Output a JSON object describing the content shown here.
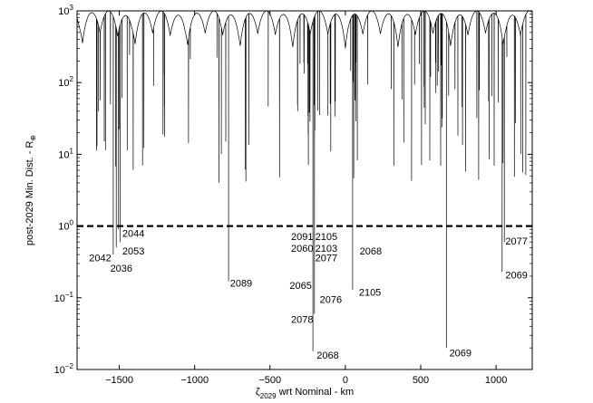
{
  "chart_data": {
    "type": "line",
    "xlabel": {
      "main": "ζ",
      "sub": "2029",
      "rest": " wrt Nominal - km"
    },
    "ylabel": {
      "main": "post-2029 Min. Dist. - R",
      "sub": "⊕"
    },
    "x_scale": "linear",
    "y_scale": "log",
    "xlim": [
      -1780,
      1240
    ],
    "ylim": [
      0.01,
      1000
    ],
    "x_ticks": [
      {
        "value": -1500,
        "label": "−1500"
      },
      {
        "value": -1000,
        "label": "−1000"
      },
      {
        "value": -500,
        "label": "−500"
      },
      {
        "value": 0,
        "label": "0"
      },
      {
        "value": 500,
        "label": "500"
      },
      {
        "value": 1000,
        "label": "1000"
      }
    ],
    "y_ticks": [
      {
        "value": 0.01,
        "base": "10",
        "exp": "−2"
      },
      {
        "value": 0.1,
        "base": "10",
        "exp": "−1"
      },
      {
        "value": 1,
        "base": "10",
        "exp": "0"
      },
      {
        "value": 10,
        "base": "10",
        "exp": "1"
      },
      {
        "value": 100,
        "base": "10",
        "exp": "2"
      },
      {
        "value": 1000,
        "base": "10",
        "exp": "3"
      }
    ],
    "reference_line": {
      "y": 1,
      "style": "dashed"
    },
    "deep_dips": [
      {
        "x": -1540,
        "min": 0.4
      },
      {
        "x": -1520,
        "min": 0.5
      },
      {
        "x": -1505,
        "min": 0.9
      },
      {
        "x": -1495,
        "min": 0.6
      },
      {
        "x": -775,
        "min": 0.17
      },
      {
        "x": -215,
        "min": 0.018
      },
      {
        "x": -205,
        "min": 0.06
      },
      {
        "x": 48,
        "min": 0.13
      },
      {
        "x": 670,
        "min": 0.02
      },
      {
        "x": 1040,
        "min": 0.23
      },
      {
        "x": 1055,
        "min": 0.6
      }
    ],
    "annotations": [
      {
        "text": "2044",
        "x": -1480,
        "y": 0.8
      },
      {
        "text": "2053",
        "x": -1480,
        "y": 0.45
      },
      {
        "text": "2042",
        "x": -1700,
        "y": 0.36
      },
      {
        "text": "2036",
        "x": -1560,
        "y": 0.26
      },
      {
        "text": "2089",
        "x": -765,
        "y": 0.16
      },
      {
        "text": "2091",
        "x": -360,
        "y": 0.72
      },
      {
        "text": "2105",
        "x": -200,
        "y": 0.72
      },
      {
        "text": "2060",
        "x": -360,
        "y": 0.49
      },
      {
        "text": "2103",
        "x": -200,
        "y": 0.49
      },
      {
        "text": "2077",
        "x": -200,
        "y": 0.36
      },
      {
        "text": "2068",
        "x": 95,
        "y": 0.45
      },
      {
        "text": "2065",
        "x": -370,
        "y": 0.15
      },
      {
        "text": "2076",
        "x": -170,
        "y": 0.095
      },
      {
        "text": "2105",
        "x": 90,
        "y": 0.12
      },
      {
        "text": "2078",
        "x": -360,
        "y": 0.05
      },
      {
        "text": "2068",
        "x": -190,
        "y": 0.016
      },
      {
        "text": "2069",
        "x": 690,
        "y": 0.017
      },
      {
        "text": "2077",
        "x": 1062,
        "y": 0.62
      },
      {
        "text": "2069",
        "x": 1062,
        "y": 0.21
      }
    ]
  }
}
